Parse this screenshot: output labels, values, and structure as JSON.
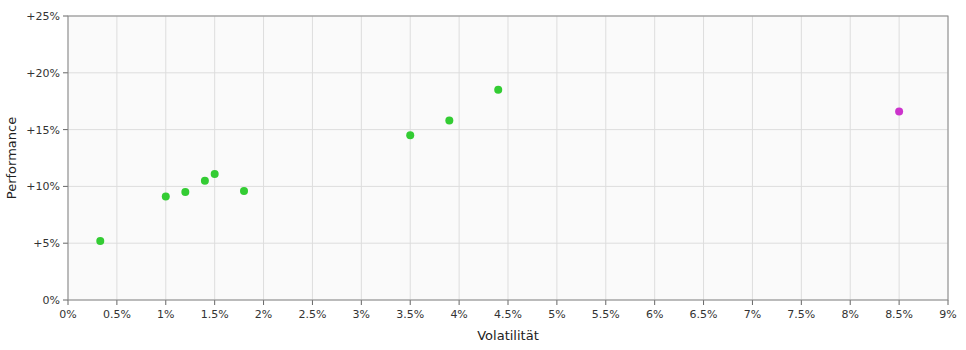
{
  "chart_data": {
    "type": "scatter",
    "xlabel": "Volatilität",
    "ylabel": "Performance",
    "series": [
      {
        "color": "#33cc33",
        "x": [
          0.0033,
          0.01,
          0.012,
          0.014,
          0.015,
          0.018,
          0.035,
          0.039,
          0.044
        ],
        "values": [
          0.052,
          0.091,
          0.095,
          0.105,
          0.111,
          0.096,
          0.145,
          0.158,
          0.185
        ]
      },
      {
        "color": "#cc33cc",
        "x": [
          0.085
        ],
        "values": [
          0.166
        ]
      }
    ],
    "xlim": [
      0.0,
      0.09
    ],
    "ylim": [
      0.0,
      0.25
    ],
    "xticks": [
      {
        "value": 0.0,
        "label": "0%"
      },
      {
        "value": 0.005,
        "label": "0.5%"
      },
      {
        "value": 0.01,
        "label": "1%"
      },
      {
        "value": 0.015,
        "label": "1.5%"
      },
      {
        "value": 0.02,
        "label": "2%"
      },
      {
        "value": 0.025,
        "label": "2.5%"
      },
      {
        "value": 0.03,
        "label": "3%"
      },
      {
        "value": 0.035,
        "label": "3.5%"
      },
      {
        "value": 0.04,
        "label": "4%"
      },
      {
        "value": 0.045,
        "label": "4.5%"
      },
      {
        "value": 0.05,
        "label": "5%"
      },
      {
        "value": 0.055,
        "label": "5.5%"
      },
      {
        "value": 0.06,
        "label": "6%"
      },
      {
        "value": 0.065,
        "label": "6.5%"
      },
      {
        "value": 0.07,
        "label": "7%"
      },
      {
        "value": 0.075,
        "label": "7.5%"
      },
      {
        "value": 0.08,
        "label": "8%"
      },
      {
        "value": 0.085,
        "label": "8.5%"
      },
      {
        "value": 0.09,
        "label": "9%"
      }
    ],
    "yticks": [
      {
        "value": 0.0,
        "label": "0%"
      },
      {
        "value": 0.05,
        "label": "+5%"
      },
      {
        "value": 0.1,
        "label": "+10%"
      },
      {
        "value": 0.15,
        "label": "+15%"
      },
      {
        "value": 0.2,
        "label": "+20%"
      },
      {
        "value": 0.25,
        "label": "+25%"
      }
    ],
    "grid": true
  }
}
